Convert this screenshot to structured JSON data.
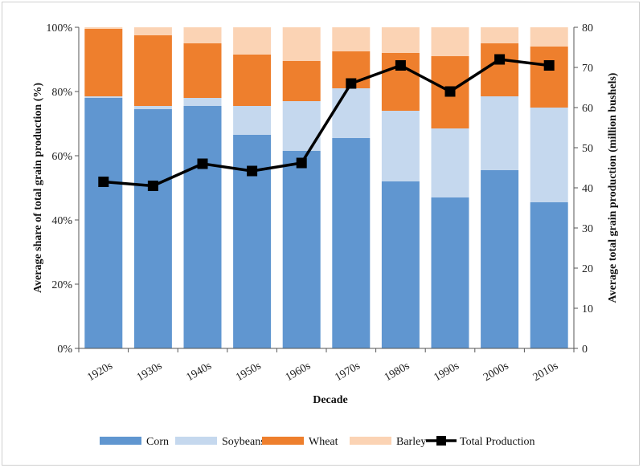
{
  "chart_data": {
    "type": "bar",
    "stacked": true,
    "categories": [
      "1920s",
      "1930s",
      "1940s",
      "1950s",
      "1960s",
      "1970s",
      "1980s",
      "1990s",
      "2000s",
      "2010s"
    ],
    "xlabel": "Decade",
    "ylabel_left": "Average share of total grain production (%)",
    "ylabel_right": "Average total grain production (million bushels)",
    "left_axis": {
      "min": 0,
      "max": 100,
      "step": 20,
      "suffix": "%"
    },
    "right_axis": {
      "min": 0,
      "max": 80,
      "step": 10
    },
    "gridlines": false,
    "legend_position": "bottom",
    "series": [
      {
        "name": "Corn",
        "type": "bar",
        "axis": "left",
        "color": "#6096d0",
        "values": [
          78,
          74.5,
          75.5,
          66.5,
          61.5,
          65.5,
          52,
          47,
          55.5,
          45.5
        ]
      },
      {
        "name": "Soybeans",
        "type": "bar",
        "axis": "left",
        "color": "#c5d8ee",
        "values": [
          0.5,
          1,
          2.5,
          9,
          15.5,
          15.5,
          22,
          21.5,
          23,
          29.5
        ]
      },
      {
        "name": "Wheat",
        "type": "bar",
        "axis": "left",
        "color": "#ee7f2d",
        "values": [
          21,
          22,
          17,
          16,
          12.5,
          11.5,
          18,
          22.5,
          16.5,
          19
        ]
      },
      {
        "name": "Barley",
        "type": "bar",
        "axis": "left",
        "color": "#fbd3b4",
        "values": [
          0.5,
          2.5,
          5,
          8.5,
          10.5,
          7.5,
          8,
          9,
          5,
          6
        ]
      },
      {
        "name": "Total Production",
        "type": "line",
        "axis": "right",
        "color": "#000000",
        "values": [
          41.5,
          40.5,
          46,
          44.2,
          46.2,
          66,
          70.5,
          64,
          72,
          70.5
        ]
      }
    ]
  }
}
